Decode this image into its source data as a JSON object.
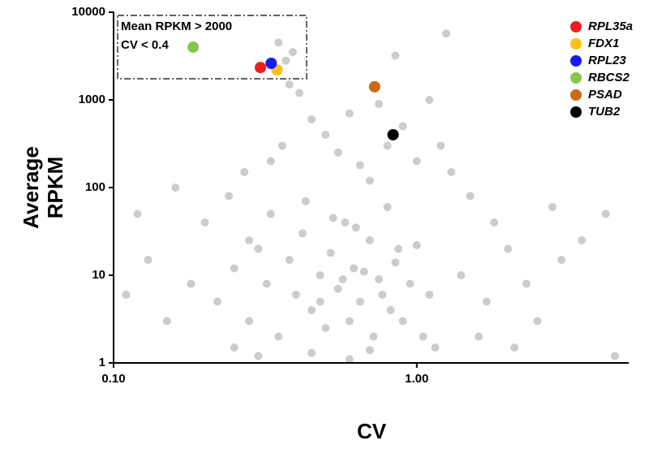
{
  "chart_data": {
    "type": "scatter",
    "xlabel": "CV",
    "ylabel": [
      "Average",
      "RPKM"
    ],
    "annotations": [
      "Mean RPKM > 2000",
      "CV < 0.4"
    ],
    "log_x": true,
    "log_y": true,
    "xlim": [
      0.1,
      5
    ],
    "ylim": [
      1,
      10000
    ],
    "xticks": [
      {
        "value": 0.1,
        "label": "0.10"
      },
      {
        "value": 1,
        "label": "1.00"
      }
    ],
    "yticks": [
      1,
      10,
      100,
      1000,
      10000
    ],
    "series": [
      {
        "color": "#000000",
        "x": [
          0.22,
          0.25,
          0.28,
          0.3,
          0.32,
          0.35,
          0.38,
          0.4,
          0.42,
          0.45,
          0.48,
          0.5,
          0.52,
          0.55,
          0.58,
          0.6,
          0.62,
          0.65,
          0.7,
          0.72,
          0.75,
          0.8,
          0.82,
          0.85,
          0.9,
          0.95,
          1.0,
          1.05,
          1.1,
          1.15,
          0.2,
          0.18,
          0.15,
          0.13,
          0.12,
          0.11,
          0.16,
          0.24,
          0.27,
          0.33,
          0.36,
          0.38,
          0.37,
          0.39,
          0.41,
          0.35,
          0.45,
          0.5,
          0.55,
          0.6,
          0.65,
          0.7,
          0.75,
          0.8,
          0.9,
          1.0,
          1.1,
          1.2,
          1.3,
          1.25,
          1.5,
          1.8,
          2.0,
          2.3,
          2.8,
          3.0,
          3.5,
          4.2,
          4.5,
          2.5,
          1.6,
          1.4,
          1.7,
          2.1,
          0.85,
          0.3,
          0.45,
          0.6,
          0.25,
          0.7,
          0.33,
          0.43,
          0.53,
          0.63,
          0.28,
          0.48,
          0.57,
          0.67,
          0.77,
          0.87
        ],
        "values": [
          5,
          12,
          3,
          20,
          8,
          2,
          15,
          6,
          30,
          4,
          10,
          2.5,
          18,
          7,
          40,
          3,
          12,
          5,
          25,
          2,
          9,
          60,
          4,
          14,
          3,
          8,
          22,
          2,
          6,
          1.5,
          40,
          8,
          3,
          15,
          50,
          6,
          100,
          80,
          150,
          200,
          300,
          1500,
          2800,
          3500,
          1200,
          4500,
          600,
          400,
          250,
          700,
          180,
          120,
          900,
          300,
          500,
          200,
          1000,
          300,
          150,
          5700,
          80,
          40,
          20,
          8,
          60,
          15,
          25,
          50,
          1.2,
          3,
          2,
          10,
          5,
          1.5,
          3200,
          1.2,
          1.3,
          1.1,
          1.5,
          1.4,
          50,
          70,
          45,
          35,
          25,
          5,
          9,
          11,
          6,
          20
        ]
      },
      {
        "name": "RPL35a",
        "color": "#ee1c1c",
        "x": [
          0.305
        ],
        "values": [
          2340
        ]
      },
      {
        "name": "FDX1",
        "color": "#fdbd1a",
        "x": [
          0.346
        ],
        "values": [
          2200
        ]
      },
      {
        "name": "RPL23",
        "color": "#1a1aee",
        "x": [
          0.331
        ],
        "values": [
          2610
        ]
      },
      {
        "name": "RBCS2",
        "color": "#86c84a",
        "x": [
          0.183
        ],
        "values": [
          3990
        ]
      },
      {
        "name": "PSAD",
        "color": "#cc6a14",
        "x": [
          0.726
        ],
        "values": [
          1410
        ]
      },
      {
        "name": "TUB2",
        "color": "#000000",
        "x": [
          0.835
        ],
        "values": [
          400
        ]
      }
    ]
  }
}
